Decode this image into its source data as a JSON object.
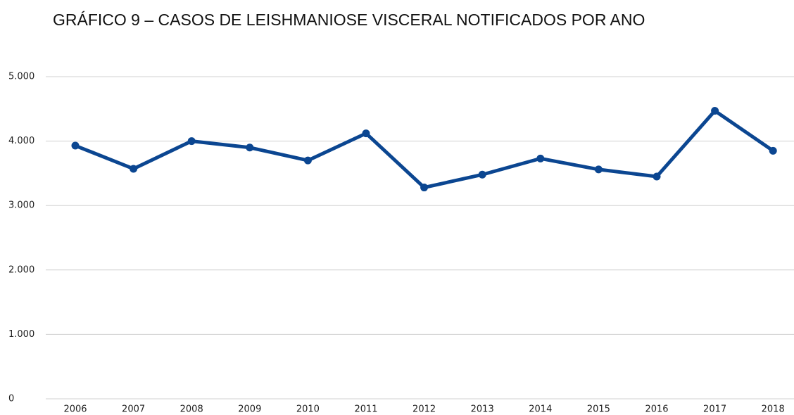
{
  "chart_data": {
    "type": "line",
    "title": "GRÁFICO 9 – CASOS DE LEISHMANIOSE VISCERAL NOTIFICADOS POR ANO",
    "categories": [
      "2006",
      "2007",
      "2008",
      "2009",
      "2010",
      "2011",
      "2012",
      "2013",
      "2014",
      "2015",
      "2016",
      "2017",
      "2018"
    ],
    "values": [
      3930,
      3570,
      4000,
      3900,
      3700,
      4120,
      3280,
      3480,
      3730,
      3560,
      3450,
      4470,
      3850
    ],
    "color": "#0b4691",
    "ylim": [
      0,
      5000
    ],
    "yticks": [
      0,
      {
        "value": 1000,
        "label": "1.000"
      },
      {
        "value": 2000,
        "label": "2.000"
      },
      {
        "value": 3000,
        "label": "3.000"
      },
      {
        "value": 4000,
        "label": "4.000"
      },
      {
        "value": 5000,
        "label": "5.000"
      }
    ],
    "grid": true
  }
}
